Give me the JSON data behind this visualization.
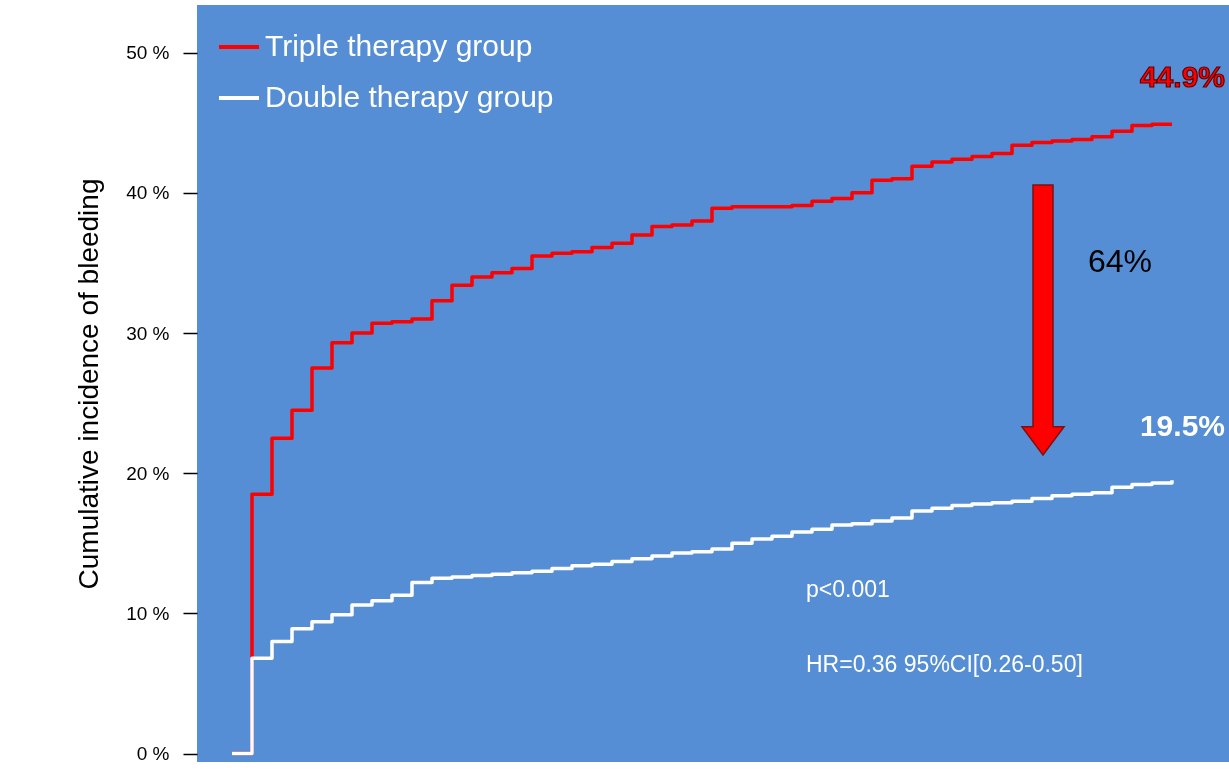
{
  "chart_data": {
    "type": "step",
    "ylabel": "Cumulative incidence of bleeding",
    "categories": [
      null,
      null,
      null,
      null,
      null,
      null,
      null,
      null,
      null,
      null,
      null,
      null,
      null,
      null,
      null,
      null,
      null,
      null,
      null,
      null,
      null,
      null,
      null,
      null,
      null,
      null,
      null,
      null,
      null,
      null,
      null,
      null,
      null,
      null,
      null,
      null,
      null,
      null,
      null,
      null,
      null,
      null,
      null,
      null,
      null,
      null,
      null,
      null
    ],
    "series": [
      {
        "name": "Triple therapy group",
        "color": "#ff0000",
        "values": [
          0,
          18.5,
          22.5,
          24.5,
          27.5,
          29.3,
          30.0,
          30.7,
          30.8,
          31.0,
          32.3,
          33.4,
          34.0,
          34.3,
          34.6,
          35.5,
          35.7,
          35.8,
          36.1,
          36.4,
          37.0,
          37.6,
          37.7,
          38.0,
          38.9,
          39.0,
          39.0,
          39.0,
          39.1,
          39.4,
          39.6,
          40.0,
          40.9,
          41.0,
          41.9,
          42.2,
          42.4,
          42.6,
          42.8,
          43.4,
          43.6,
          43.7,
          43.8,
          44.0,
          44.4,
          44.8,
          44.9,
          44.9
        ]
      },
      {
        "name": "Double therapy group",
        "color": "#ffffff",
        "values": [
          0,
          6.8,
          8.0,
          8.9,
          9.4,
          9.9,
          10.6,
          10.9,
          11.3,
          12.2,
          12.5,
          12.6,
          12.7,
          12.8,
          12.9,
          13.0,
          13.2,
          13.4,
          13.5,
          13.7,
          13.9,
          14.1,
          14.3,
          14.4,
          14.6,
          15.0,
          15.3,
          15.5,
          15.8,
          16.0,
          16.3,
          16.4,
          16.6,
          16.8,
          17.3,
          17.5,
          17.7,
          17.8,
          17.9,
          18.0,
          18.2,
          18.4,
          18.5,
          18.6,
          19.0,
          19.2,
          19.3,
          19.5
        ]
      }
    ],
    "ylim": [
      -0.6,
      53.4
    ],
    "yticks": [
      {
        "value": 0,
        "label": "0 %"
      },
      {
        "value": 10,
        "label": "10 %"
      },
      {
        "value": 20,
        "label": "20 %"
      },
      {
        "value": 30,
        "label": "30 %"
      },
      {
        "value": 40,
        "label": "40 %"
      },
      {
        "value": 50,
        "label": "50 %"
      }
    ],
    "annotations": [
      "44.9%",
      "19.5%",
      "64%",
      "p<0.001",
      "HR=0.36  95%CI[0.26-0.50]"
    ],
    "legend": "top left",
    "grid": false,
    "tick_labels": "y",
    "marker": "none",
    "line_style": "solid"
  }
}
